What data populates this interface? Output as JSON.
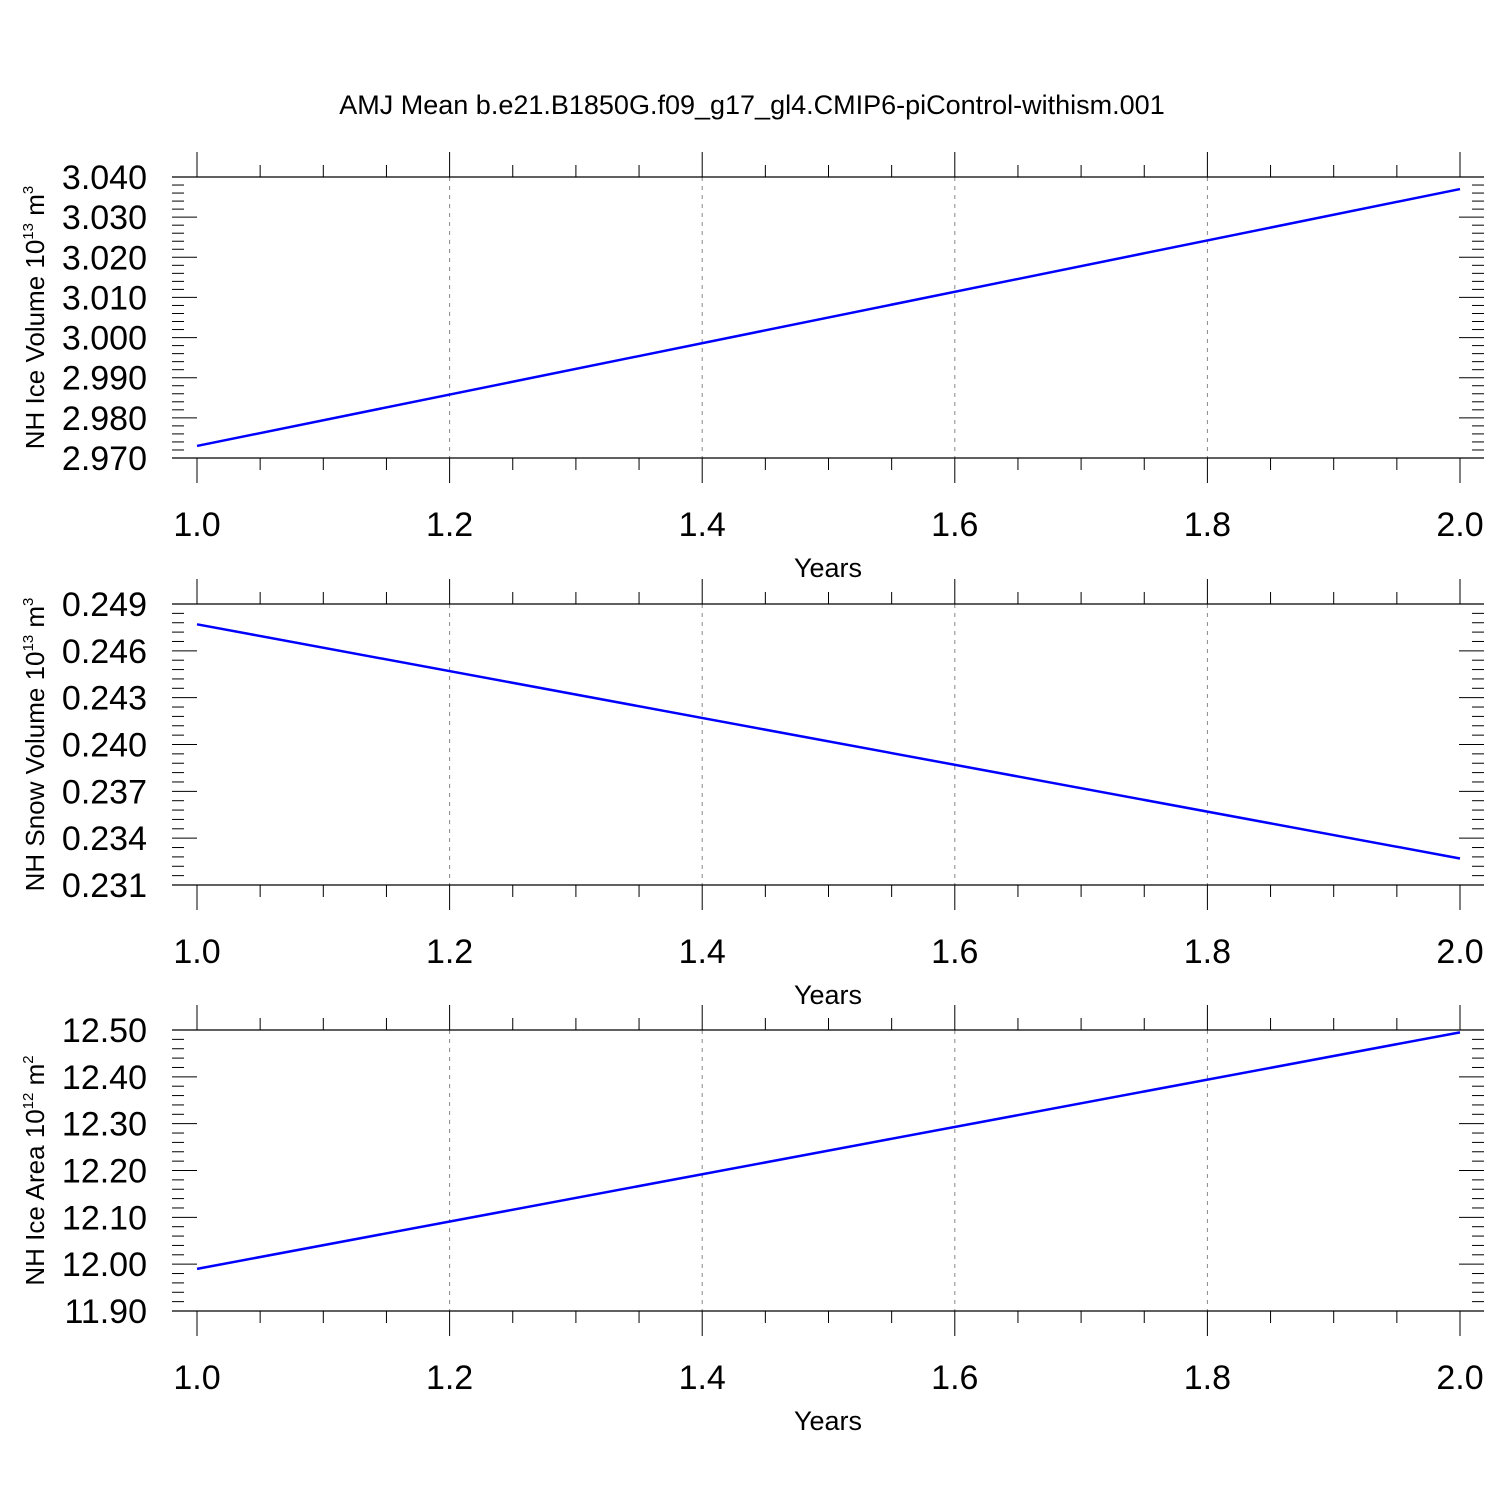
{
  "figure": {
    "title": "AMJ Mean b.e21.B1850G.f09_g17_gl4.CMIP6-piControl-withism.001"
  },
  "style": {
    "line_color": "#0000ff",
    "axis_color": "#000000",
    "grid_color": "#888888"
  },
  "chart_data": [
    {
      "type": "line",
      "title": "AMJ Mean b.e21.B1850G.f09_g17_gl4.CMIP6-piControl-withism.001",
      "xlabel": "Years",
      "ylabel": {
        "prefix": "NH Ice Volume 10",
        "exp": "13",
        "unit": " m",
        "unit_exp": "3"
      },
      "x": [
        1.0,
        2.0
      ],
      "y": [
        2.973,
        3.037
      ],
      "xlim": [
        1.0,
        2.0
      ],
      "ylim": [
        2.97,
        3.04
      ],
      "xticks": [
        "1.0",
        "1.2",
        "1.4",
        "1.6",
        "1.8",
        "2.0"
      ],
      "yticks": [
        "2.970",
        "2.980",
        "2.990",
        "3.000",
        "3.010",
        "3.020",
        "3.030",
        "3.040"
      ],
      "grid": "x-dashed"
    },
    {
      "type": "line",
      "xlabel": "Years",
      "ylabel": {
        "prefix": "NH Snow Volume 10",
        "exp": "13",
        "unit": " m",
        "unit_exp": "3"
      },
      "x": [
        1.0,
        2.0
      ],
      "y": [
        0.2477,
        0.2327
      ],
      "xlim": [
        1.0,
        2.0
      ],
      "ylim": [
        0.231,
        0.249
      ],
      "xticks": [
        "1.0",
        "1.2",
        "1.4",
        "1.6",
        "1.8",
        "2.0"
      ],
      "yticks": [
        "0.231",
        "0.234",
        "0.237",
        "0.240",
        "0.243",
        "0.246",
        "0.249"
      ],
      "grid": "x-dashed"
    },
    {
      "type": "line",
      "xlabel": "Years",
      "ylabel": {
        "prefix": "NH Ice Area 10",
        "exp": "12",
        "unit": " m",
        "unit_exp": "2"
      },
      "x": [
        1.0,
        2.0
      ],
      "y": [
        11.99,
        12.495
      ],
      "xlim": [
        1.0,
        2.0
      ],
      "ylim": [
        11.9,
        12.5
      ],
      "xticks": [
        "1.0",
        "1.2",
        "1.4",
        "1.6",
        "1.8",
        "2.0"
      ],
      "yticks": [
        "11.90",
        "12.00",
        "12.10",
        "12.20",
        "12.30",
        "12.40",
        "12.50"
      ],
      "grid": "x-dashed"
    }
  ]
}
